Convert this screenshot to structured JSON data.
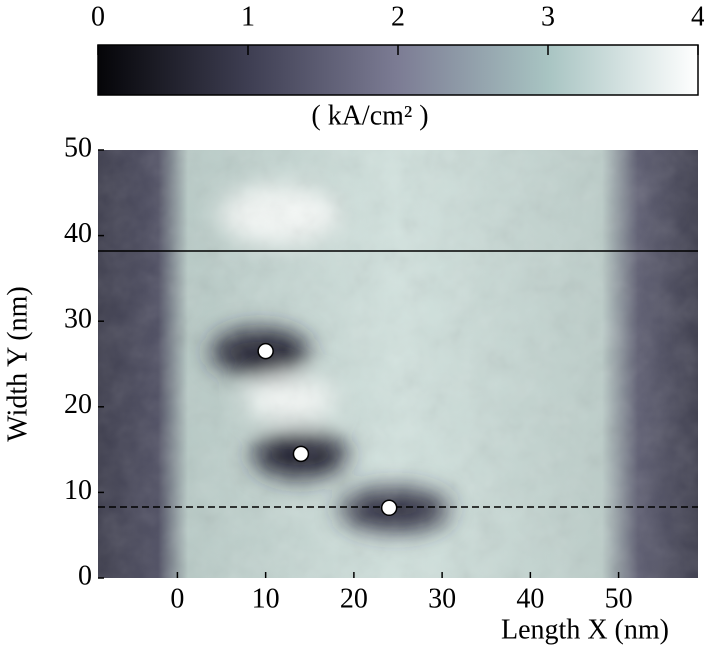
{
  "chart_data": {
    "type": "heatmap",
    "xlabel": "Length X (nm)",
    "ylabel": "Width Y (nm)",
    "xlim": [
      -9,
      59
    ],
    "ylim": [
      0,
      50
    ],
    "xticks": [
      0,
      10,
      20,
      30,
      40,
      50
    ],
    "yticks": [
      0,
      10,
      20,
      30,
      40,
      50
    ],
    "colorbar": {
      "label": "( kA/cm² )",
      "lim": [
        0,
        4
      ],
      "ticks": [
        0,
        1,
        2,
        3,
        4
      ],
      "colors": [
        "#050508",
        "#3e3e52",
        "#7c7c94",
        "#a8c4c2",
        "#ffffff"
      ]
    },
    "points": {
      "x": [
        10,
        14,
        24
      ],
      "y": [
        26.5,
        14.5,
        8.2
      ]
    },
    "lines": [
      {
        "y": 38.2,
        "style": "solid"
      },
      {
        "y": 8.3,
        "style": "dashed"
      }
    ]
  }
}
